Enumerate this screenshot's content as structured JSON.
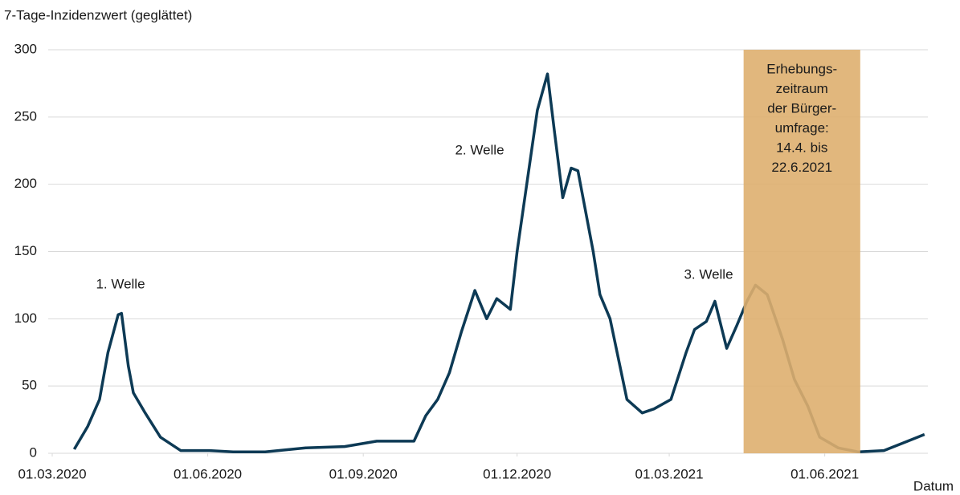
{
  "chart_data": {
    "type": "line",
    "y_axis_label": "7-Tage-Inzidenzwert (geglättet)",
    "x_axis_label": "Datum",
    "x": [
      "2020-03-14",
      "2020-03-22",
      "2020-03-29",
      "2020-04-03",
      "2020-04-09",
      "2020-04-11",
      "2020-04-15",
      "2020-04-18",
      "2020-04-25",
      "2020-05-04",
      "2020-05-16",
      "2020-06-02",
      "2020-06-16",
      "2020-07-05",
      "2020-07-29",
      "2020-08-21",
      "2020-09-09",
      "2020-10-01",
      "2020-10-08",
      "2020-10-15",
      "2020-10-22",
      "2020-10-29",
      "2020-11-06",
      "2020-11-13",
      "2020-11-19",
      "2020-11-27",
      "2020-12-01",
      "2020-12-09",
      "2020-12-13",
      "2020-12-19",
      "2020-12-23",
      "2020-12-28",
      "2021-01-02",
      "2021-01-06",
      "2021-01-15",
      "2021-01-19",
      "2021-01-25",
      "2021-02-04",
      "2021-02-13",
      "2021-02-20",
      "2021-03-02",
      "2021-03-11",
      "2021-03-16",
      "2021-03-23",
      "2021-03-28",
      "2021-04-04",
      "2021-04-10",
      "2021-04-16",
      "2021-04-21",
      "2021-04-28",
      "2021-05-07",
      "2021-05-14",
      "2021-05-22",
      "2021-05-29",
      "2021-06-09",
      "2021-06-21",
      "2021-07-06",
      "2021-07-18",
      "2021-07-30"
    ],
    "series": [
      {
        "color": "#0d3a55",
        "values": [
          3,
          20,
          40,
          75,
          103,
          104,
          65,
          45,
          30,
          12,
          2,
          2,
          1,
          1,
          4,
          5,
          9,
          9,
          28,
          40,
          60,
          90,
          121,
          100,
          115,
          107,
          150,
          220,
          255,
          282,
          240,
          190,
          212,
          210,
          150,
          118,
          100,
          40,
          30,
          33,
          40,
          75,
          92,
          98,
          113,
          78,
          95,
          113,
          125,
          118,
          85,
          55,
          35,
          12,
          4,
          1,
          2,
          8,
          14
        ]
      }
    ],
    "xlim": [
      "2020-03-01",
      "2021-08-01"
    ],
    "xticks": [
      {
        "value": "2020-03-01",
        "label": "01.03.2020"
      },
      {
        "value": "2020-06-01",
        "label": "01.06.2020"
      },
      {
        "value": "2020-09-01",
        "label": "01.09.2020"
      },
      {
        "value": "2020-12-01",
        "label": "01.12.2020"
      },
      {
        "value": "2021-03-01",
        "label": "01.03.2021"
      },
      {
        "value": "2021-06-01",
        "label": "01.06.2021"
      }
    ],
    "ylim": [
      0,
      300
    ],
    "yticks": [
      0,
      50,
      100,
      150,
      200,
      250,
      300
    ],
    "grid": true,
    "annotations": [
      "1. Welle",
      "2. Welle",
      "3. Welle"
    ],
    "highlight": {
      "start": "2021-04-14",
      "end": "2021-06-22",
      "color": "#deaf6f",
      "label": [
        "Erhebungs-",
        "zeitraum",
        "der Bürger-",
        "umfrage:",
        "14.4. bis",
        "22.6.2021"
      ]
    }
  }
}
